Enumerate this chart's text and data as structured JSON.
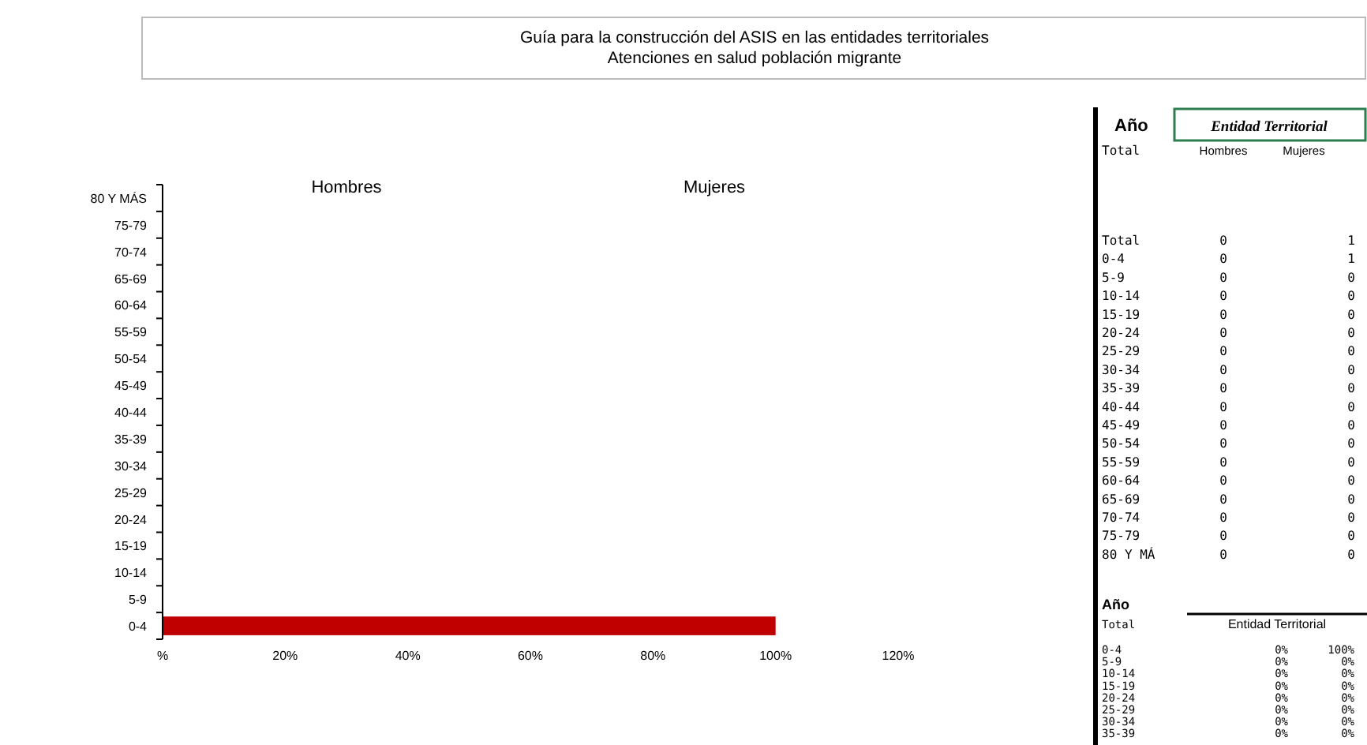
{
  "chart_data": [
    {
      "type": "bar",
      "orientation": "horizontal",
      "title": "Guía para la construcción del ASIS en las entidades territoriales",
      "subtitle": "Atenciones en salud población migrante",
      "categories": [
        "80 Y MÁS",
        "75-79",
        "70-74",
        "65-69",
        "60-64",
        "55-59",
        "50-54",
        "45-49",
        "40-44",
        "35-39",
        "30-34",
        "25-29",
        "20-24",
        "15-19",
        "10-14",
        "5-9",
        "0-4"
      ],
      "series": [
        {
          "color": "#c00000",
          "values": [
            0,
            0,
            0,
            0,
            0,
            0,
            0,
            0,
            0,
            0,
            0,
            0,
            0,
            0,
            0,
            0,
            100
          ]
        }
      ],
      "xlim": [
        0,
        120
      ],
      "xticks": [
        {
          "value": 0,
          "label": "%"
        },
        {
          "value": 20,
          "label": "20%"
        },
        {
          "value": 40,
          "label": "40%"
        },
        {
          "value": 60,
          "label": "60%"
        },
        {
          "value": 80,
          "label": "80%"
        },
        {
          "value": 100,
          "label": "100%"
        },
        {
          "value": 120,
          "label": "120%"
        }
      ],
      "annotations": [
        "Hombres",
        "Mujeres"
      ],
      "grid": false
    },
    {
      "type": "other",
      "title": "Año",
      "subtitle": "Entidad Territorial",
      "xlabel": "Total",
      "categories": [
        "Total",
        "0-4",
        "5-9",
        "10-14",
        "15-19",
        "20-24",
        "25-29",
        "30-34",
        "35-39",
        "40-44",
        "45-49",
        "50-54",
        "55-59",
        "60-64",
        "65-69",
        "70-74",
        "75-79",
        "80 Y MÁ"
      ],
      "series": [
        {
          "name": "Hombres",
          "values": [
            0,
            0,
            0,
            0,
            0,
            0,
            0,
            0,
            0,
            0,
            0,
            0,
            0,
            0,
            0,
            0,
            0,
            0
          ]
        },
        {
          "name": "Mujeres",
          "values": [
            1,
            1,
            0,
            0,
            0,
            0,
            0,
            0,
            0,
            0,
            0,
            0,
            0,
            0,
            0,
            0,
            0,
            0
          ]
        }
      ],
      "data_labels": true
    },
    {
      "type": "other",
      "title": "Año",
      "subtitle": "Entidad Territorial",
      "xlabel": "Total",
      "categories": [
        "0-4",
        "5-9",
        "10-14",
        "15-19",
        "20-24",
        "25-29",
        "30-34",
        "35-39"
      ],
      "series": [
        {
          "values": [
            0,
            0,
            0,
            0,
            0,
            0,
            0,
            0
          ],
          "value_labels": [
            "0%",
            "0%",
            "0%",
            "0%",
            "0%",
            "0%",
            "0%",
            "0%"
          ]
        },
        {
          "values": [
            100,
            0,
            0,
            0,
            0,
            0,
            0,
            0
          ],
          "value_labels": [
            "100%",
            "0%",
            "0%",
            "0%",
            "0%",
            "0%",
            "0%",
            "0%"
          ]
        }
      ]
    }
  ]
}
